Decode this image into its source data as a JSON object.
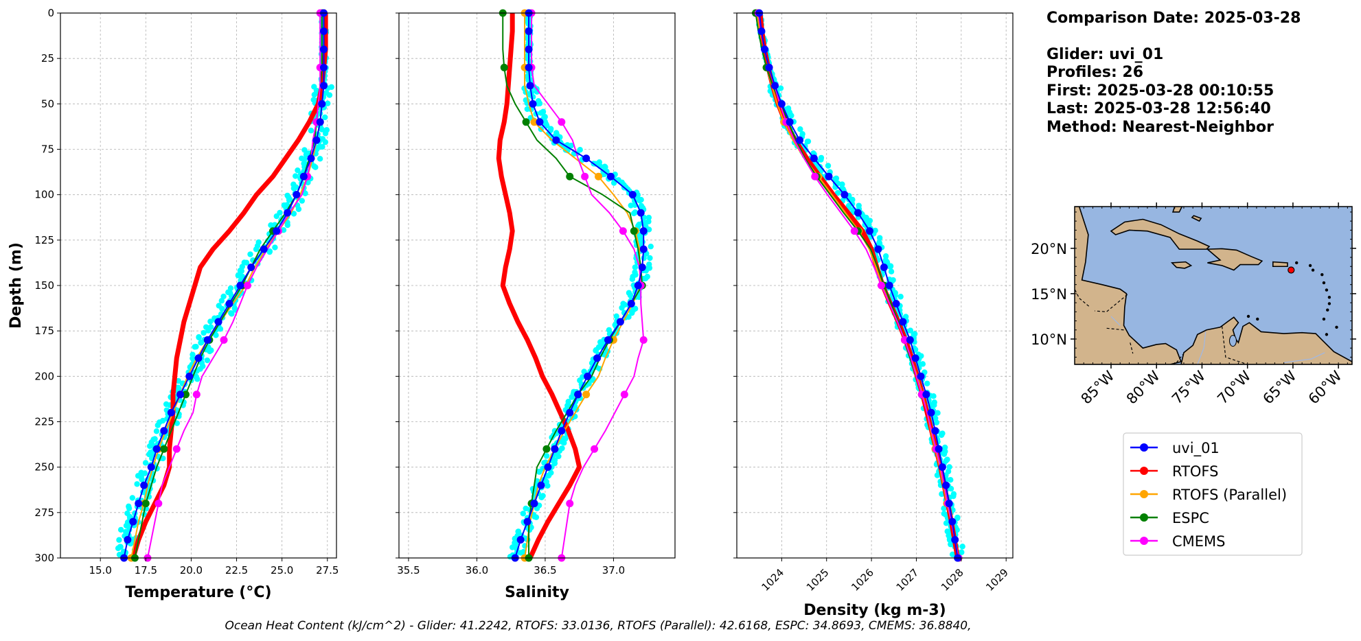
{
  "info": {
    "comparison_date": "Comparison Date: 2025-03-28",
    "glider": "Glider: uvi_01",
    "profiles": "Profiles: 26",
    "first": "First: 2025-03-28 00:10:55",
    "last": "Last: 2025-03-28 12:56:40",
    "method": "Method: Nearest-Neighbor"
  },
  "footer": "Ocean Heat Content (kJ/cm^2) - Glider: 41.2242,  RTOFS: 33.0136,  RTOFS (Parallel): 42.6168,  ESPC: 34.8693,  CMEMS: 36.8840,",
  "colors": {
    "uvi_01": "#0000ff",
    "RTOFS": "#ff0000",
    "RTOFS (Parallel)": "#ffa500",
    "ESPC": "#008000",
    "CMEMS": "#ff00ff",
    "glider_scatter": "#00ffff",
    "ocean": "#97b6e1",
    "land": "#d2b48c"
  },
  "legend": [
    "uvi_01",
    "RTOFS",
    "RTOFS (Parallel)",
    "ESPC",
    "CMEMS"
  ],
  "map": {
    "lat_ticks": [
      "20°N",
      "15°N",
      "10°N"
    ],
    "lon_ticks": [
      "85°W",
      "80°W",
      "75°W",
      "70°W",
      "65°W",
      "60°W"
    ],
    "lon_range": [
      -89,
      -58.5
    ],
    "lat_range": [
      7.2,
      24.6
    ],
    "glider_position": {
      "lon": -65.2,
      "lat": 17.6
    }
  },
  "chart_data": [
    {
      "type": "line",
      "xlabel": "Temperature (°C)",
      "ylabel": "Depth (m)",
      "xlim": [
        12.8,
        28.0
      ],
      "ylim": [
        300,
        0
      ],
      "xticks": [
        "15.0",
        "17.5",
        "20.0",
        "22.5",
        "25.0",
        "27.5"
      ],
      "yticks": [
        "0",
        "25",
        "50",
        "75",
        "100",
        "125",
        "150",
        "175",
        "200",
        "225",
        "250",
        "275",
        "300"
      ],
      "grid": true,
      "depths": [
        0,
        10,
        20,
        30,
        40,
        50,
        60,
        70,
        80,
        90,
        100,
        110,
        120,
        130,
        140,
        150,
        160,
        170,
        180,
        190,
        200,
        210,
        220,
        230,
        240,
        250,
        260,
        270,
        280,
        290,
        300
      ],
      "series": [
        {
          "name": "uvi_01",
          "x": [
            27.3,
            27.3,
            27.3,
            27.3,
            27.3,
            27.2,
            27.1,
            26.9,
            26.6,
            26.2,
            25.8,
            25.3,
            24.7,
            24.0,
            23.3,
            22.7,
            22.1,
            21.5,
            20.9,
            20.4,
            19.9,
            19.4,
            18.9,
            18.5,
            18.1,
            17.8,
            17.4,
            17.1,
            16.8,
            16.5,
            16.3
          ]
        },
        {
          "name": "RTOFS",
          "x": [
            27.4,
            27.4,
            27.4,
            27.3,
            27.2,
            27.0,
            26.5,
            25.9,
            25.2,
            24.5,
            23.6,
            22.9,
            22.1,
            21.2,
            20.5,
            20.2,
            19.9,
            19.6,
            19.4,
            19.2,
            19.1,
            19.0,
            19.0,
            18.9,
            18.8,
            18.8,
            18.5,
            18.0,
            17.5,
            17.1,
            16.8
          ]
        },
        {
          "name": "RTOFS (Parallel)",
          "x": [
            27.3,
            27.3,
            27.3,
            27.3,
            27.3,
            27.2,
            27.1,
            26.9,
            26.7,
            26.4,
            26.0,
            25.5,
            24.8,
            24.1,
            23.5,
            23.0,
            22.3,
            21.6,
            20.9,
            20.3,
            19.8,
            19.4,
            19.0,
            18.6,
            18.2,
            17.9,
            17.6,
            17.4,
            17.1,
            16.9,
            16.7
          ]
        },
        {
          "name": "ESPC",
          "x": [
            27.2,
            27.2,
            27.2,
            27.2,
            27.1,
            27.0,
            26.9,
            26.8,
            26.5,
            26.2,
            25.8,
            25.2,
            24.5,
            23.8,
            23.3,
            22.8,
            22.2,
            21.6,
            21.0,
            20.5,
            20.1,
            19.7,
            19.3,
            18.9,
            18.5,
            18.1,
            17.8,
            17.5,
            17.3,
            17.1,
            16.9
          ]
        },
        {
          "name": "CMEMS",
          "x": [
            27.1,
            27.1,
            27.1,
            27.1,
            27.1,
            27.0,
            26.9,
            26.7,
            26.6,
            26.4,
            26.1,
            25.4,
            24.8,
            24.2,
            23.6,
            23.1,
            22.7,
            22.3,
            21.8,
            21.2,
            20.6,
            20.3,
            20.1,
            19.6,
            19.2,
            18.8,
            18.4,
            18.2,
            18.0,
            17.8,
            17.6
          ]
        }
      ]
    },
    {
      "type": "line",
      "xlabel": "Salinity",
      "xlim": [
        35.43,
        37.45
      ],
      "ylim": [
        300,
        0
      ],
      "xticks": [
        "35.5",
        "36.0",
        "36.5",
        "37.0"
      ],
      "grid": true,
      "depths": [
        0,
        10,
        20,
        30,
        40,
        50,
        60,
        70,
        80,
        90,
        100,
        110,
        120,
        130,
        140,
        150,
        160,
        170,
        180,
        190,
        200,
        210,
        220,
        230,
        240,
        250,
        260,
        270,
        280,
        290,
        300
      ],
      "series": [
        {
          "name": "uvi_01",
          "x": [
            36.38,
            36.38,
            36.38,
            36.38,
            36.39,
            36.41,
            36.46,
            36.58,
            36.8,
            36.98,
            37.14,
            37.2,
            37.22,
            37.22,
            37.21,
            37.18,
            37.13,
            37.05,
            36.96,
            36.88,
            36.81,
            36.74,
            36.68,
            36.62,
            36.57,
            36.52,
            36.47,
            36.42,
            36.37,
            36.32,
            36.28
          ]
        },
        {
          "name": "RTOFS",
          "x": [
            36.26,
            36.26,
            36.25,
            36.24,
            36.23,
            36.22,
            36.2,
            36.17,
            36.16,
            36.18,
            36.21,
            36.24,
            36.26,
            36.24,
            36.21,
            36.19,
            36.24,
            36.3,
            36.37,
            36.43,
            36.48,
            36.55,
            36.61,
            36.67,
            36.72,
            36.75,
            36.68,
            36.6,
            36.52,
            36.45,
            36.39
          ]
        },
        {
          "name": "RTOFS (Parallel)",
          "x": [
            36.35,
            36.35,
            36.35,
            36.35,
            36.35,
            36.38,
            36.42,
            36.55,
            36.72,
            36.89,
            37.0,
            37.1,
            37.16,
            37.19,
            37.19,
            37.2,
            37.14,
            37.07,
            37.0,
            36.94,
            36.89,
            36.8,
            36.72,
            36.64,
            36.57,
            36.5,
            36.45,
            36.42,
            36.39,
            36.37,
            36.35
          ]
        },
        {
          "name": "ESPC",
          "x": [
            36.19,
            36.19,
            36.19,
            36.2,
            36.22,
            36.28,
            36.36,
            36.44,
            36.58,
            36.68,
            36.92,
            37.12,
            37.15,
            37.18,
            37.2,
            37.21,
            37.13,
            37.05,
            36.97,
            36.9,
            36.84,
            36.74,
            36.66,
            36.58,
            36.51,
            36.44,
            36.42,
            36.4,
            36.38,
            36.38,
            36.38
          ]
        },
        {
          "name": "CMEMS",
          "x": [
            36.4,
            36.4,
            36.4,
            36.4,
            36.42,
            36.52,
            36.62,
            36.7,
            36.74,
            36.79,
            36.84,
            36.97,
            37.07,
            37.15,
            37.19,
            37.2,
            37.2,
            37.21,
            37.22,
            37.18,
            37.15,
            37.08,
            37.01,
            36.94,
            36.86,
            36.78,
            36.72,
            36.68,
            36.66,
            36.64,
            36.62
          ]
        }
      ]
    },
    {
      "type": "line",
      "xlabel": "Density (kg m-3)",
      "xlim": [
        1023.0,
        1029.15
      ],
      "ylim": [
        300,
        0
      ],
      "xticks": [
        "1024",
        "1025",
        "1026",
        "1027",
        "1028",
        "1029"
      ],
      "grid": true,
      "depths": [
        0,
        10,
        20,
        30,
        40,
        50,
        60,
        70,
        80,
        90,
        100,
        110,
        120,
        130,
        140,
        150,
        160,
        170,
        180,
        190,
        200,
        210,
        220,
        230,
        240,
        250,
        260,
        270,
        280,
        290,
        300
      ],
      "series": [
        {
          "name": "uvi_01",
          "x": [
            1023.5,
            1023.55,
            1023.62,
            1023.72,
            1023.85,
            1024.0,
            1024.18,
            1024.4,
            1024.72,
            1025.05,
            1025.4,
            1025.7,
            1025.96,
            1026.15,
            1026.28,
            1026.4,
            1026.55,
            1026.7,
            1026.86,
            1026.98,
            1027.1,
            1027.22,
            1027.33,
            1027.42,
            1027.5,
            1027.58,
            1027.66,
            1027.73,
            1027.8,
            1027.86,
            1027.92
          ]
        },
        {
          "name": "RTOFS",
          "x": [
            1023.52,
            1023.56,
            1023.62,
            1023.7,
            1023.8,
            1023.92,
            1024.08,
            1024.3,
            1024.56,
            1024.85,
            1025.15,
            1025.48,
            1025.8,
            1026.0,
            1026.12,
            1026.25,
            1026.42,
            1026.6,
            1026.76,
            1026.9,
            1027.02,
            1027.14,
            1027.24,
            1027.34,
            1027.44,
            1027.54,
            1027.62,
            1027.7,
            1027.78,
            1027.85,
            1027.92
          ]
        },
        {
          "name": "RTOFS (Parallel)",
          "x": [
            1023.45,
            1023.5,
            1023.56,
            1023.66,
            1023.78,
            1023.9,
            1024.05,
            1024.25,
            1024.5,
            1024.82,
            1025.12,
            1025.42,
            1025.72,
            1025.95,
            1026.1,
            1026.24,
            1026.4,
            1026.58,
            1026.74,
            1026.88,
            1027.02,
            1027.14,
            1027.24,
            1027.32,
            1027.42,
            1027.52,
            1027.6,
            1027.68,
            1027.78,
            1027.86,
            1027.94
          ]
        },
        {
          "name": "ESPC",
          "x": [
            1023.42,
            1023.48,
            1023.56,
            1023.66,
            1023.8,
            1023.98,
            1024.15,
            1024.32,
            1024.52,
            1024.78,
            1025.08,
            1025.38,
            1025.7,
            1025.98,
            1026.14,
            1026.28,
            1026.44,
            1026.6,
            1026.74,
            1026.86,
            1027.0,
            1027.12,
            1027.24,
            1027.34,
            1027.44,
            1027.54,
            1027.62,
            1027.7,
            1027.78,
            1027.86,
            1027.94
          ]
        },
        {
          "name": "CMEMS",
          "x": [
            1023.48,
            1023.54,
            1023.62,
            1023.72,
            1023.84,
            1023.96,
            1024.1,
            1024.28,
            1024.5,
            1024.74,
            1025.02,
            1025.32,
            1025.62,
            1025.88,
            1026.06,
            1026.22,
            1026.4,
            1026.58,
            1026.74,
            1026.88,
            1027.0,
            1027.12,
            1027.24,
            1027.34,
            1027.44,
            1027.54,
            1027.62,
            1027.7,
            1027.78,
            1027.86,
            1027.94
          ]
        }
      ]
    }
  ]
}
